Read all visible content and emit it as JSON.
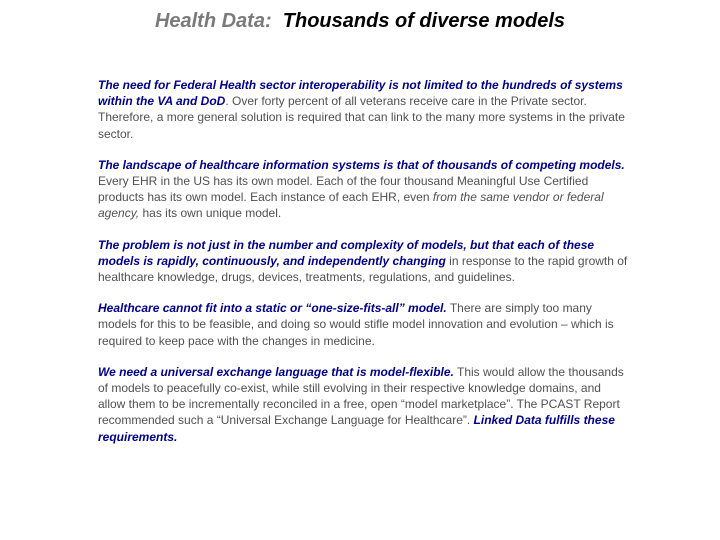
{
  "title": {
    "prefix": "Health Data:",
    "main": "Thousands of diverse models"
  },
  "paragraphs": [
    {
      "lead": "The need for Federal Health sector interoperability is not limited to the hundreds of systems within the VA and DoD",
      "rest": ".  Over  forty percent of all veterans receive care in the Private sector.  Therefore, a more general solution is required that can link to the many more systems in the private sector."
    },
    {
      "lead": "The landscape of healthcare information systems is that of thousands of competing models.",
      "rest": " Every EHR in the US  has its own model.  Each of the four thousand Meaningful Use Certified products has its own model.  Each instance of each EHR,  even ",
      "italic": "from the same vendor or federal agency,",
      "rest2": "  has its own unique model."
    },
    {
      "lead": "The problem is not just in the number and complexity of models, but that each of these models is rapidly, continuously, and independently changing",
      "rest": " in response to the rapid growth of healthcare knowledge, drugs, devices, treatments, regulations, and guidelines."
    },
    {
      "lead": "Healthcare cannot fit into a static or “one-size-fits-all” model.",
      "rest": "  There are simply too many models for this to be feasible, and doing so would stifle model innovation and evolution – which is required to keep pace with the changes in medicine."
    },
    {
      "lead": "We need a universal exchange language that is model-flexible.",
      "rest": "  This would allow the thousands of models to peacefully co-exist,  while still evolving in their respective knowledge domains,  and allow them to be incrementally reconciled in a free, open “model marketplace”. The PCAST Report recommended such a  “Universal Exchange Language for Healthcare”.  ",
      "tail": "Linked Data fulfills these requirements."
    }
  ]
}
